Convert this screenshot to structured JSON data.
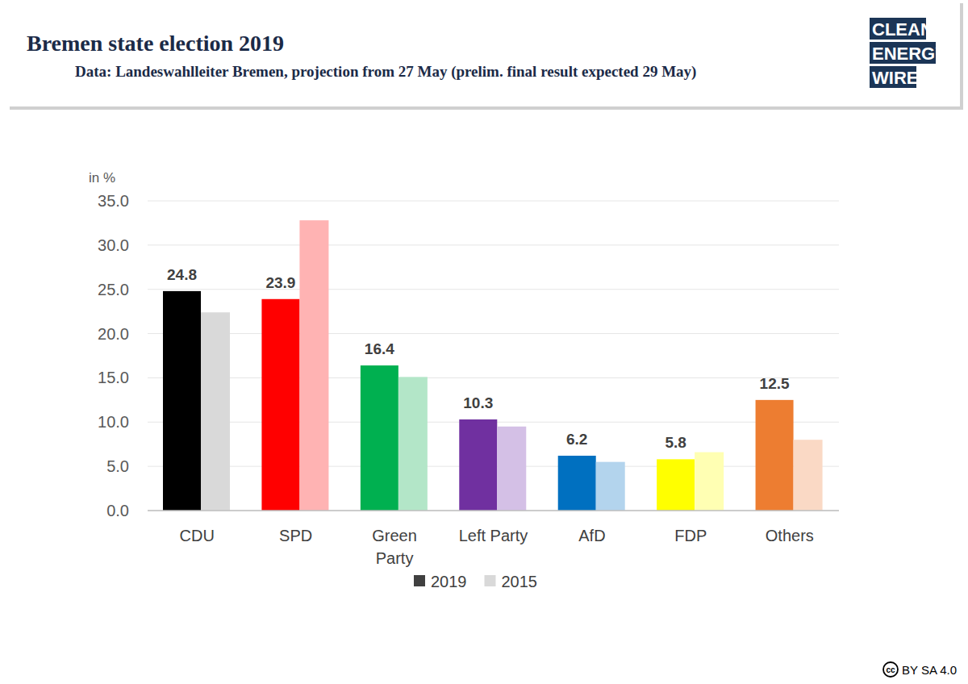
{
  "chart_data": {
    "type": "bar",
    "title": "Bremen state election 2019",
    "subtitle": "Data: Landeswahlleiter Bremen, projection from 27 May (prelim. final result expected 29 May)",
    "y_label": "in %",
    "categories": [
      "CDU",
      "SPD",
      "Green\nParty",
      "Left Party",
      "AfD",
      "FDP",
      "Others"
    ],
    "series": [
      {
        "name": "2019",
        "color": "#404040",
        "data_labels": true,
        "colors": [
          "#000000",
          "#ff0000",
          "#00b050",
          "#7030a0",
          "#0070c0",
          "#ffff00",
          "#ed7d31"
        ],
        "values": [
          24.8,
          23.9,
          16.4,
          10.3,
          6.2,
          5.8,
          12.5
        ]
      },
      {
        "name": "2015",
        "color": "#d9d9d9",
        "data_labels": false,
        "colors": [
          "#d9d9d9",
          "#ffb3b3",
          "#b3e6c8",
          "#d4c0e6",
          "#b3d4ed",
          "#ffffb3",
          "#fad9c5"
        ],
        "values": [
          22.4,
          32.8,
          15.1,
          9.5,
          5.5,
          6.6,
          8.0
        ]
      }
    ],
    "ylim": [
      0,
      35
    ],
    "yticks": [
      {
        "value": 0,
        "label": "0.0"
      },
      {
        "value": 5,
        "label": "5.0"
      },
      {
        "value": 10,
        "label": "10.0"
      },
      {
        "value": 15,
        "label": "15.0"
      },
      {
        "value": 20,
        "label": "20.0"
      },
      {
        "value": 25,
        "label": "25.0"
      },
      {
        "value": 30,
        "label": "30.0"
      },
      {
        "value": 35,
        "label": "35.0"
      }
    ],
    "grid": true,
    "legend": "bottom"
  },
  "logo": [
    "CLEAN",
    "ENERGY",
    "WIRE"
  ],
  "license": {
    "icon": "cc",
    "text": "BY SA 4.0"
  }
}
